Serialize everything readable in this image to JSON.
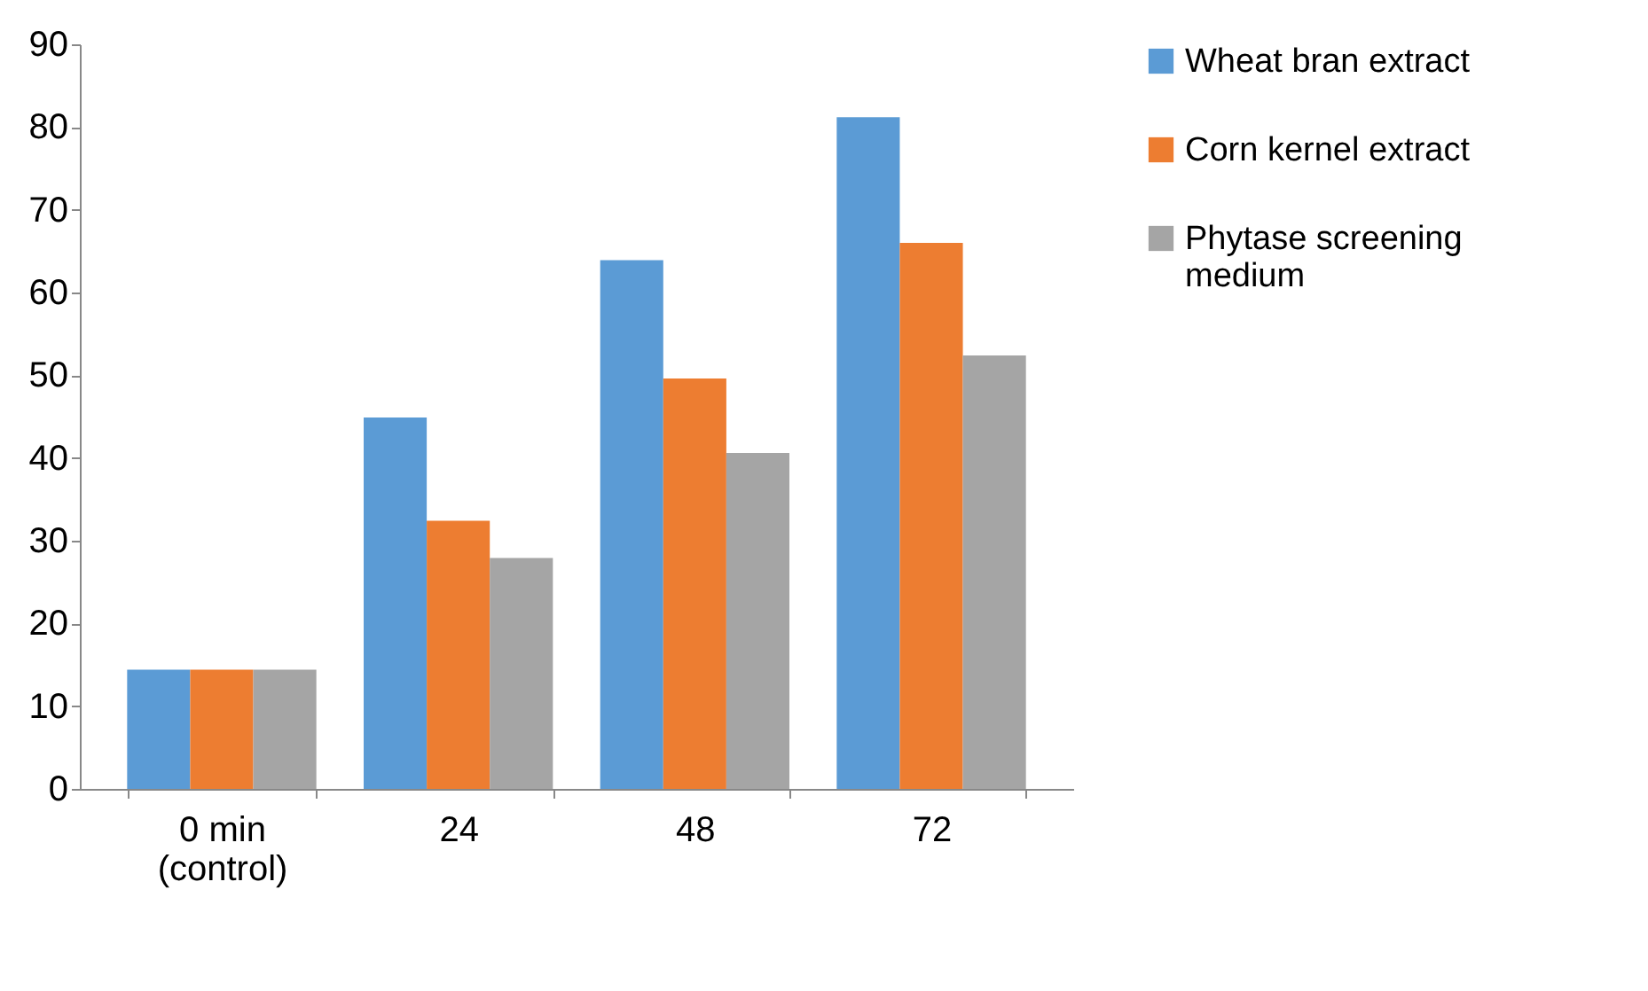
{
  "chart_data": {
    "type": "bar",
    "categories": [
      "0 min\n(control)",
      "24",
      "48",
      "72"
    ],
    "series": [
      {
        "name": "Wheat bran extract",
        "color": "#5b9bd5",
        "values": [
          14.4,
          44.9,
          63.9,
          81.2
        ]
      },
      {
        "name": "Corn kernel extract",
        "color": "#ed7d31",
        "values": [
          14.4,
          32.4,
          49.6,
          66.0
        ]
      },
      {
        "name": "Phytase screening medium",
        "color": "#a5a5a5",
        "values": [
          14.4,
          27.9,
          40.6,
          52.4
        ]
      }
    ],
    "ylim": [
      0,
      90
    ],
    "yticks": [
      0,
      10,
      20,
      30,
      40,
      50,
      60,
      70,
      80,
      90
    ],
    "grid": false,
    "legend": "right"
  }
}
